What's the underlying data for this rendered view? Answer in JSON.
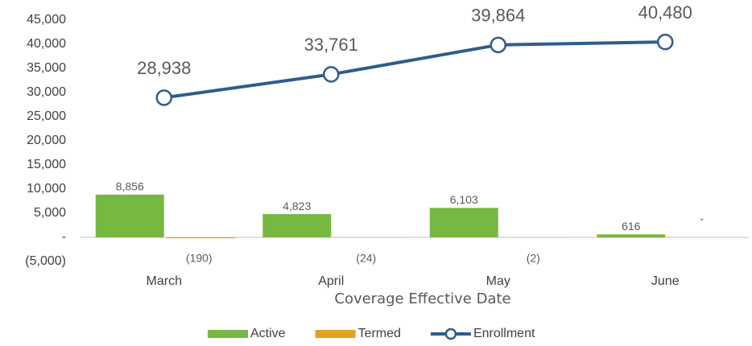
{
  "chart_data": {
    "type": "bar",
    "x_label": "Coverage Effective Date",
    "categories": [
      "March",
      "April",
      "May",
      "June"
    ],
    "series": [
      {
        "name": "Active",
        "type": "bar",
        "color": "#77b843",
        "values": [
          8856,
          4823,
          6103,
          616
        ],
        "value_labels": [
          "8,856",
          "4,823",
          "6,103",
          "616"
        ]
      },
      {
        "name": "Termed",
        "type": "bar",
        "color": "#e3a021",
        "values": [
          -190,
          -24,
          -2,
          0
        ],
        "value_labels": [
          "(190)",
          "(24)",
          "(2)",
          "-"
        ]
      },
      {
        "name": "Enrollment",
        "type": "line",
        "color": "#2e5d8c",
        "values": [
          28938,
          33761,
          39864,
          40480
        ],
        "value_labels": [
          "28,938",
          "33,761",
          "39,864",
          "40,480"
        ]
      }
    ],
    "ylim": [
      -5000,
      45000
    ],
    "yticks": [
      {
        "value": -5000,
        "label": "(5,000)"
      },
      {
        "value": 0,
        "label": "-"
      },
      {
        "value": 5000,
        "label": "5,000"
      },
      {
        "value": 10000,
        "label": "10,000"
      },
      {
        "value": 15000,
        "label": "15,000"
      },
      {
        "value": 20000,
        "label": "20,000"
      },
      {
        "value": 25000,
        "label": "25,000"
      },
      {
        "value": 30000,
        "label": "30,000"
      },
      {
        "value": 35000,
        "label": "35,000"
      },
      {
        "value": 40000,
        "label": "40,000"
      },
      {
        "value": 45000,
        "label": "45,000"
      }
    ],
    "grid": false,
    "legend": "bottom"
  }
}
